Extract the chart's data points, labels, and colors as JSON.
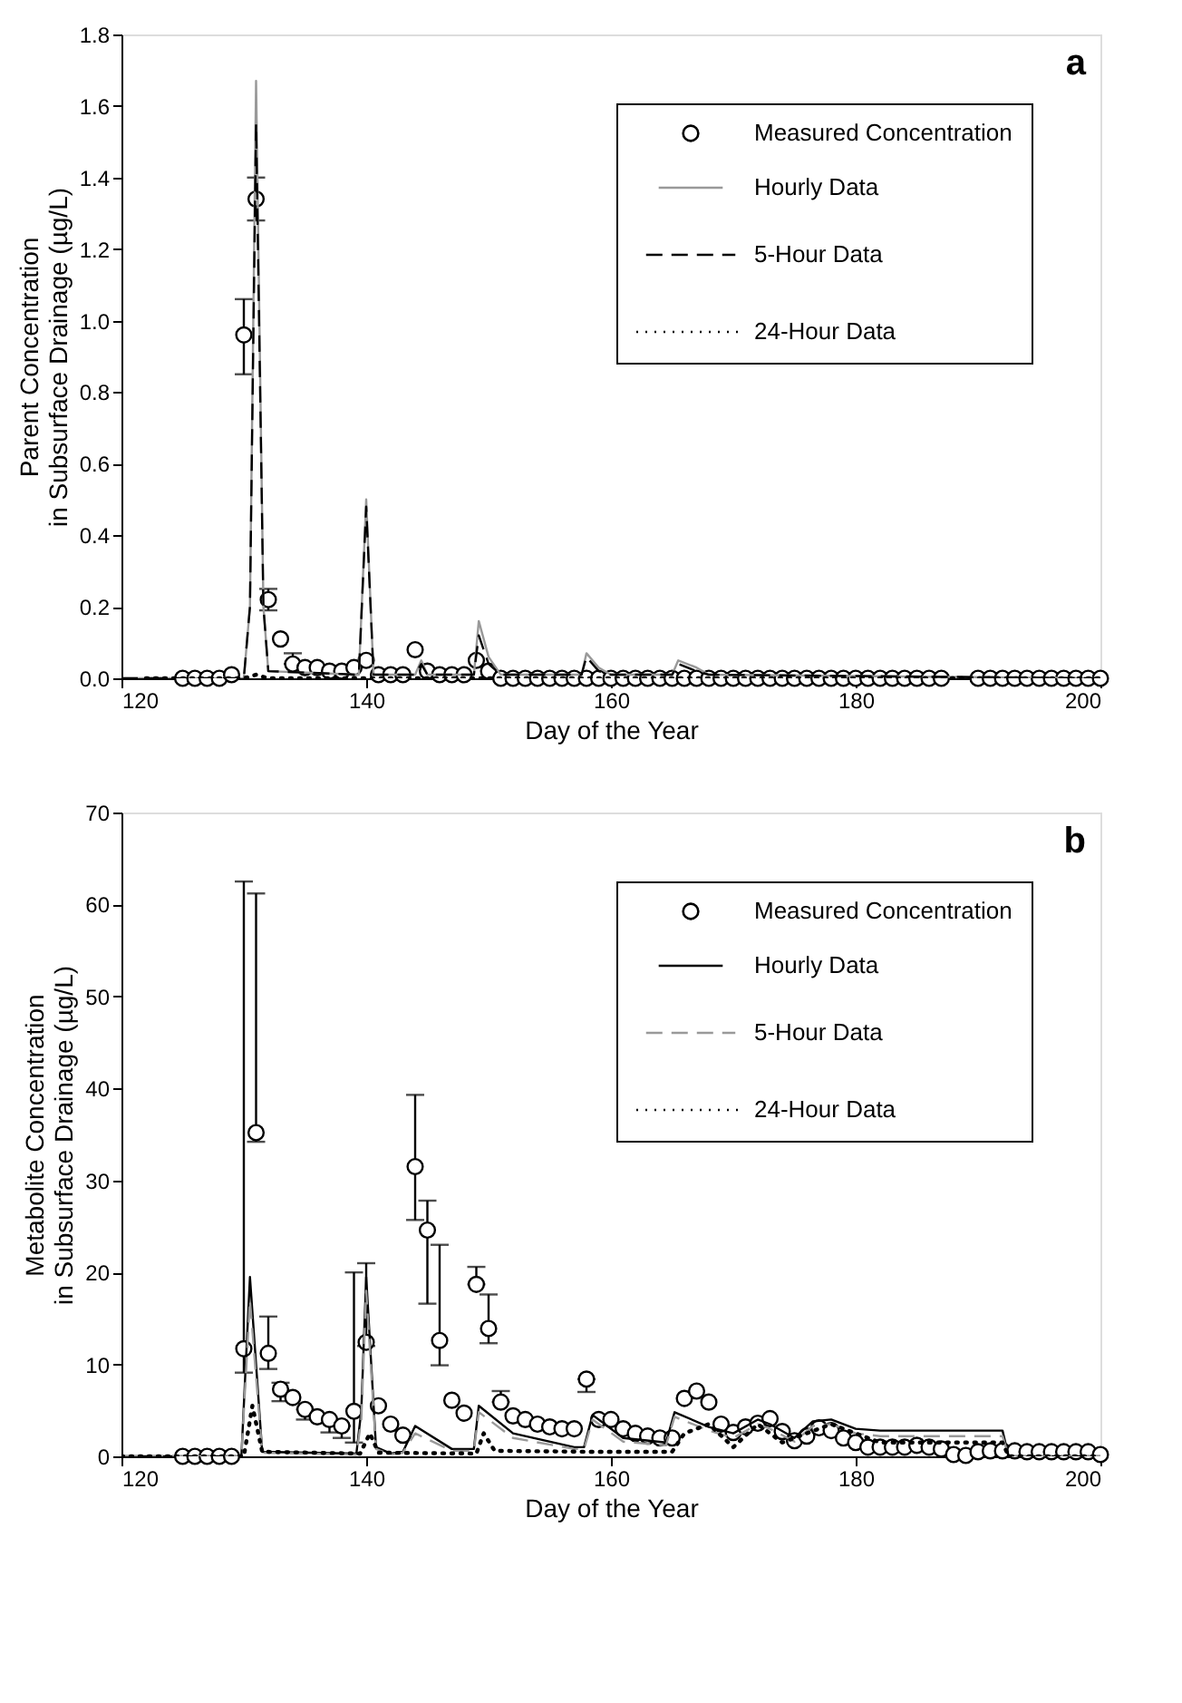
{
  "chart_data": [
    {
      "type": "line",
      "xlabel": "Day of the Year",
      "ylabel": "Parent Concentration\nin Subsurface Drainage (µg/L)",
      "annotations": [
        "a"
      ],
      "xlim": [
        120,
        200
      ],
      "xticks": [
        120,
        140,
        160,
        180,
        200
      ],
      "ylim": [
        0,
        1.8
      ],
      "yticks": [
        {
          "value": 0,
          "label": "0.0"
        },
        {
          "value": 0.2,
          "label": "0.2"
        },
        {
          "value": 0.4,
          "label": "0.4"
        },
        {
          "value": 0.6,
          "label": "0.6"
        },
        {
          "value": 0.8,
          "label": "0.8"
        },
        {
          "value": 1.0,
          "label": "1.0"
        },
        {
          "value": 1.2,
          "label": "1.2"
        },
        {
          "value": 1.4,
          "label": "1.4"
        },
        {
          "value": 1.6,
          "label": "1.6"
        },
        {
          "value": 1.8,
          "label": "1.8"
        }
      ],
      "grid": false,
      "legend": "top right",
      "series": [
        {
          "name": "Measured Concentration",
          "type": "scatter",
          "marker": "circle",
          "color": "#000000",
          "x": [
            125,
            126,
            127,
            128,
            129,
            130,
            131,
            132,
            133,
            134,
            135,
            136,
            137,
            138,
            139,
            140,
            141,
            142,
            143,
            144,
            145,
            146,
            147,
            148,
            149,
            150,
            151,
            152,
            153,
            154,
            155,
            156,
            157,
            158,
            159,
            160,
            161,
            162,
            163,
            164,
            165,
            166,
            167,
            168,
            169,
            170,
            171,
            172,
            173,
            174,
            175,
            176,
            177,
            178,
            179,
            180,
            181,
            182,
            183,
            184,
            185,
            186,
            187,
            190,
            191,
            192,
            193,
            194,
            195,
            196,
            197,
            198,
            199,
            200
          ],
          "values": [
            0,
            0,
            0,
            0,
            0.01,
            0.96,
            1.34,
            0.22,
            0.11,
            0.04,
            0.03,
            0.03,
            0.02,
            0.02,
            0.03,
            0.05,
            0.01,
            0.01,
            0.01,
            0.08,
            0.02,
            0.01,
            0.01,
            0.01,
            0.05,
            0.02,
            0,
            0,
            0,
            0,
            0,
            0,
            0,
            0,
            0,
            0,
            0,
            0,
            0,
            0,
            0,
            0,
            0,
            0,
            0,
            0,
            0,
            0,
            0,
            0,
            0,
            0,
            0,
            0,
            0,
            0,
            0,
            0,
            0,
            0,
            0,
            0,
            0,
            0,
            0,
            0,
            0,
            0,
            0,
            0,
            0,
            0,
            0,
            0
          ],
          "errors": [
            null,
            null,
            null,
            null,
            null,
            [
              0.85,
              1.06
            ],
            [
              1.28,
              1.4
            ],
            [
              0.19,
              0.25
            ],
            null,
            [
              0.04,
              0.07
            ],
            null,
            null,
            null,
            null,
            null,
            null,
            null,
            null,
            null,
            null,
            null,
            null,
            null,
            null,
            null,
            null,
            null,
            null,
            null,
            null,
            null,
            null,
            null,
            null,
            null,
            null,
            null,
            null,
            null,
            null,
            null,
            null,
            null,
            null,
            null,
            null,
            null,
            null,
            null,
            null,
            null,
            null,
            null,
            null,
            null,
            null,
            null,
            null,
            null,
            null,
            null,
            null,
            null,
            null,
            null,
            null,
            null,
            null,
            null,
            null,
            null,
            null,
            null,
            null
          ]
        },
        {
          "name": "Hourly Data",
          "line_style": "solid",
          "color": "#999999",
          "x": [
            120,
            130,
            130.5,
            131,
            131.6,
            132,
            139.4,
            140,
            140.6,
            144,
            144.5,
            145,
            148.8,
            149.2,
            150,
            151,
            157.6,
            158,
            159,
            160,
            165,
            165.5,
            167,
            168,
            200
          ],
          "values": [
            0,
            0,
            0.2,
            1.67,
            0.2,
            0.02,
            0.01,
            0.5,
            0.01,
            0.01,
            0.05,
            0.01,
            0.01,
            0.16,
            0.06,
            0.01,
            0.01,
            0.07,
            0.03,
            0.01,
            0.01,
            0.05,
            0.03,
            0.01,
            0
          ]
        },
        {
          "name": "5-Hour Data",
          "line_style": "dashed",
          "color": "#000000",
          "x": [
            120,
            130,
            130.5,
            131,
            131.6,
            132,
            139.4,
            140,
            140.6,
            144,
            144.5,
            145,
            148.8,
            149.2,
            150,
            151,
            157.6,
            158,
            159,
            160,
            165,
            165.5,
            167,
            168,
            200
          ],
          "values": [
            0,
            0,
            0.2,
            1.55,
            0.2,
            0.02,
            0.01,
            0.48,
            0.01,
            0.01,
            0.04,
            0.01,
            0.01,
            0.12,
            0.04,
            0.01,
            0.01,
            0.06,
            0.02,
            0.01,
            0.01,
            0.04,
            0.02,
            0.01,
            0
          ]
        },
        {
          "name": "24-Hour Data",
          "line_style": "dotted",
          "color": "#000000",
          "x": [
            122,
            130,
            131,
            132,
            200
          ],
          "values": [
            0,
            0,
            0.01,
            0,
            0
          ]
        }
      ]
    },
    {
      "type": "line",
      "xlabel": "Day of the Year",
      "ylabel": "Metabolite Concentration\nin Subsurface Drainage (µg/L)",
      "annotations": [
        "b"
      ],
      "xlim": [
        120,
        200
      ],
      "xticks": [
        120,
        140,
        160,
        180,
        200
      ],
      "ylim": [
        0,
        70
      ],
      "yticks": [
        0,
        10,
        20,
        30,
        40,
        50,
        60,
        70
      ],
      "grid": false,
      "legend": "top right",
      "series": [
        {
          "name": "Measured Concentration",
          "type": "scatter",
          "marker": "circle",
          "color": "#000000",
          "x": [
            125,
            126,
            127,
            128,
            129,
            130,
            131,
            132,
            133,
            134,
            135,
            136,
            137,
            138,
            139,
            140,
            141,
            142,
            143,
            144,
            145,
            146,
            147,
            148,
            149,
            150,
            151,
            152,
            153,
            154,
            155,
            156,
            157,
            158,
            159,
            160,
            161,
            162,
            163,
            164,
            165,
            166,
            167,
            168,
            169,
            170,
            171,
            172,
            173,
            174,
            175,
            176,
            177,
            178,
            179,
            180,
            181,
            182,
            183,
            184,
            185,
            186,
            187,
            188,
            189,
            190,
            191,
            192,
            193,
            194,
            195,
            196,
            197,
            198,
            199,
            200
          ],
          "values": [
            0,
            0,
            0,
            0,
            0,
            11.7,
            35.2,
            11.2,
            7.3,
            6.4,
            5.1,
            4.3,
            4.0,
            3.3,
            4.9,
            12.4,
            5.5,
            3.5,
            2.3,
            31.5,
            24.6,
            12.6,
            6.1,
            4.7,
            18.7,
            13.9,
            5.9,
            4.4,
            4.0,
            3.5,
            3.2,
            3.0,
            3.0,
            8.4,
            4.0,
            4.0,
            3.0,
            2.5,
            2.2,
            2.0,
            2.0,
            6.3,
            7.1,
            5.9,
            3.5,
            2.6,
            3.2,
            3.6,
            4.1,
            2.7,
            1.7,
            2.2,
            3.1,
            2.8,
            2.0,
            1.5,
            1.0,
            1.0,
            1.0,
            1.0,
            1.2,
            1.0,
            0.8,
            0.2,
            0.1,
            0.5,
            0.6,
            0.6,
            0.6,
            0.5,
            0.5,
            0.5,
            0.5,
            0.5,
            0.5,
            0.2
          ],
          "errors": [
            null,
            null,
            null,
            null,
            null,
            [
              9.1,
              62.5
            ],
            [
              34.2,
              61.2
            ],
            [
              9.5,
              15.2
            ],
            [
              6.0,
              8.0
            ],
            null,
            [
              4.0,
              5.1
            ],
            null,
            [
              2.6,
              4.0
            ],
            [
              2.0,
              3.3
            ],
            [
              1.5,
              20.0
            ],
            [
              12.0,
              21.0
            ],
            null,
            null,
            null,
            [
              25.7,
              39.3
            ],
            [
              16.6,
              27.8
            ],
            [
              9.9,
              23.0
            ],
            null,
            null,
            [
              18.7,
              20.6
            ],
            [
              12.3,
              17.6
            ],
            [
              5.9,
              7.1
            ],
            null,
            null,
            null,
            null,
            null,
            null,
            [
              7.0,
              8.4
            ],
            null,
            null,
            null,
            null,
            null,
            null,
            null,
            null,
            null,
            null,
            null,
            null,
            null,
            null,
            null,
            null,
            null,
            null,
            null,
            null,
            null,
            null,
            null,
            null,
            null,
            null,
            null,
            null,
            null,
            null,
            null,
            null,
            null,
            null,
            null,
            null,
            null,
            null,
            null,
            null,
            null,
            null
          ]
        },
        {
          "name": "Hourly Data",
          "line_style": "solid",
          "color": "#000000",
          "x": [
            120,
            129.8,
            130.5,
            131.5,
            139.2,
            139.6,
            140,
            140.8,
            142,
            143,
            144,
            147,
            148.8,
            149.2,
            152,
            157,
            157.8,
            158.5,
            161,
            164.5,
            165.2,
            168,
            170,
            172,
            173,
            175,
            176.5,
            178,
            180,
            182,
            192,
            192.5,
            200
          ],
          "values": [
            0,
            0,
            19.5,
            0.5,
            0.3,
            5,
            19.5,
            1,
            0.3,
            0.5,
            3.3,
            0.8,
            0.8,
            5.5,
            2.5,
            1,
            1,
            4.5,
            2,
            1.5,
            4.8,
            3.2,
            2.5,
            4,
            3.5,
            2,
            3.8,
            4,
            3,
            2.8,
            2.8,
            0,
            0
          ]
        },
        {
          "name": "5-Hour Data",
          "line_style": "dashed",
          "color": "#999999",
          "x": [
            120,
            129.8,
            130.5,
            131.5,
            139.2,
            139.6,
            140,
            140.8,
            142,
            143,
            144,
            147,
            148.8,
            149.2,
            152,
            157,
            157.8,
            158.5,
            161,
            164.5,
            165.2,
            168,
            170,
            172,
            173,
            175,
            176.5,
            178,
            180,
            182,
            192,
            192.5,
            200
          ],
          "values": [
            0,
            0,
            17,
            0.4,
            0.2,
            4,
            18,
            0.8,
            0.2,
            0.4,
            2.5,
            0.6,
            0.6,
            4.8,
            2,
            0.8,
            0.8,
            4,
            1.6,
            1.2,
            4.3,
            2.8,
            2,
            3.5,
            3,
            1.6,
            3.3,
            3.5,
            2.5,
            2.2,
            2.2,
            0,
            0
          ]
        },
        {
          "name": "24-Hour Data",
          "line_style": "dotted",
          "color": "#000000",
          "x": [
            120,
            130,
            130.7,
            131.5,
            139.5,
            140.3,
            141,
            149,
            149.6,
            150.5,
            158,
            165,
            166,
            168,
            170,
            172,
            174,
            178,
            182,
            192,
            192.5,
            200
          ],
          "values": [
            0,
            0,
            5.5,
            0.5,
            0.3,
            2.5,
            0.4,
            0.3,
            2.5,
            0.6,
            0.5,
            0.5,
            2.5,
            3.5,
            1,
            3.5,
            1.5,
            3.5,
            1.5,
            1.5,
            0,
            0
          ]
        }
      ]
    }
  ]
}
